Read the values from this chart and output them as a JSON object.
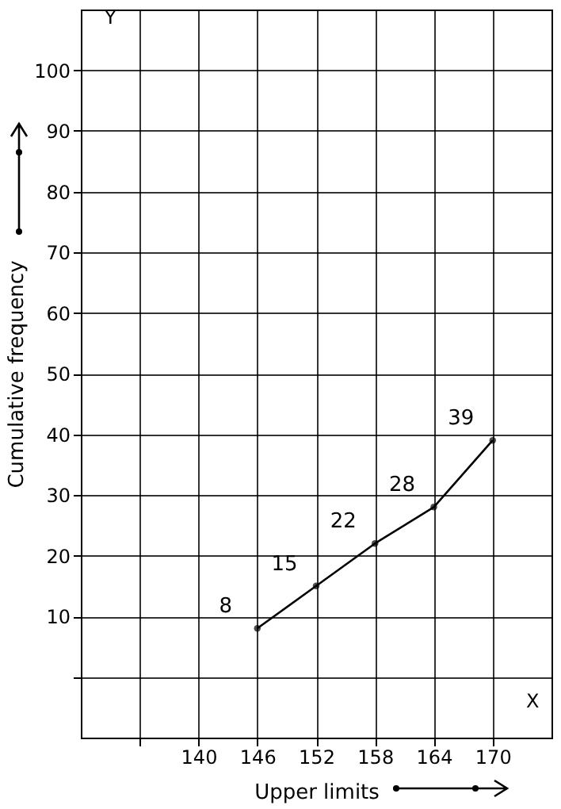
{
  "chart_data": {
    "type": "line",
    "xlabel": "Upper limits",
    "ylabel": "Cumulative frequency",
    "annotations": [
      "X",
      "Y"
    ],
    "x": [
      146,
      152,
      158,
      164,
      170
    ],
    "series": [
      {
        "color": "#000000",
        "values": [
          8,
          15,
          22,
          28,
          39
        ]
      }
    ],
    "data_labels": true,
    "marker": "circle",
    "line_style": "solid",
    "grid": true,
    "xlim": [
      128,
      176
    ],
    "xticks": [
      {
        "value": 134,
        "label": null
      },
      140,
      146,
      152,
      158,
      164,
      170
    ],
    "ylim": [
      -10,
      110
    ],
    "yticks": [
      {
        "value": 0,
        "label": null
      },
      10,
      20,
      30,
      40,
      50,
      60,
      70,
      80,
      90,
      100
    ]
  }
}
